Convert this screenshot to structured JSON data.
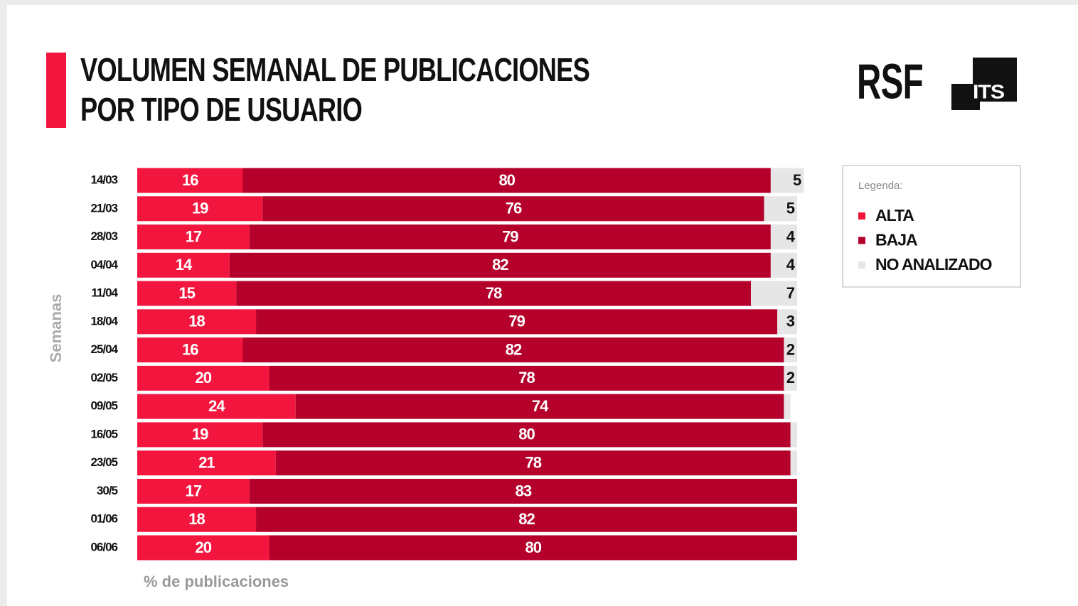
{
  "chart_data": {
    "type": "stacked-barh",
    "title": [
      "VOLUMEN SEMANAL DE PUBLICACIONES",
      "POR TIPO DE USUARIO"
    ],
    "logos": [
      "RSF",
      "ITS"
    ],
    "ylabel": "Semanas",
    "xlabel": "% de publicaciones",
    "legend_title": "Legenda:",
    "categories": [
      "14/03",
      "21/03",
      "28/03",
      "04/04",
      "11/04",
      "18/04",
      "25/04",
      "02/05",
      "09/05",
      "16/05",
      "23/05",
      "30/5",
      "01/06",
      "06/06"
    ],
    "series": [
      {
        "name": "ALTA",
        "color": "#f2163e",
        "values": [
          16,
          19,
          17,
          14,
          15,
          18,
          16,
          20,
          24,
          19,
          21,
          17,
          18,
          20
        ]
      },
      {
        "name": "BAJA",
        "color": "#b4002a",
        "values": [
          80,
          76,
          79,
          82,
          78,
          79,
          82,
          78,
          74,
          80,
          78,
          83,
          82,
          80
        ]
      },
      {
        "name": "NO ANALIZADO",
        "color": "#e6e6e6",
        "values": [
          5,
          5,
          4,
          4,
          7,
          3,
          2,
          2,
          1,
          1,
          1,
          null,
          null,
          null
        ]
      }
    ],
    "xlim": [
      0,
      100
    ]
  }
}
